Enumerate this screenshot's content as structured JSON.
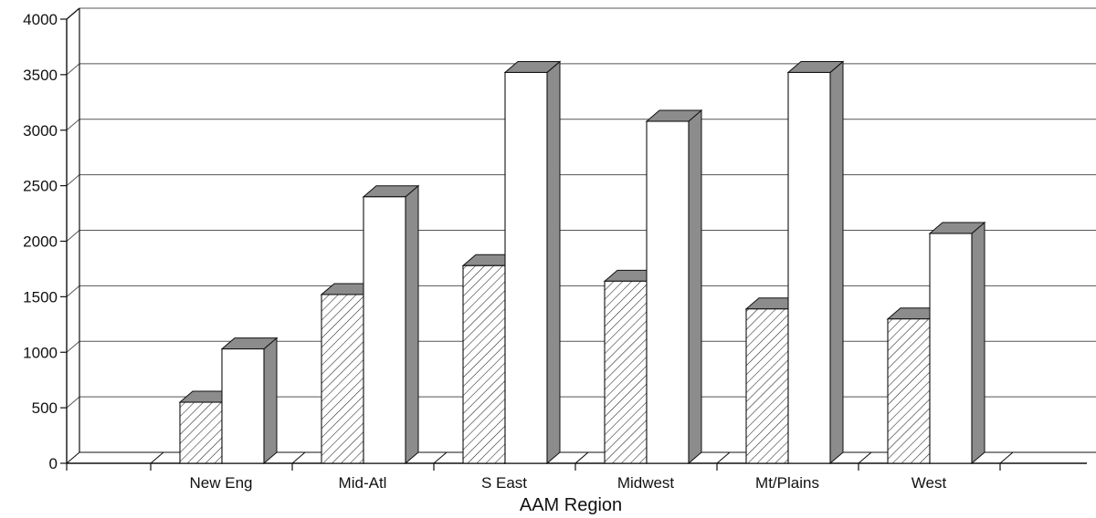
{
  "chart_data": {
    "type": "bar",
    "style": "3d-grouped",
    "categories": [
      "New Eng",
      "Mid-Atl",
      "S East",
      "Midwest",
      "Mt/Plains",
      "West"
    ],
    "series": [
      {
        "fill": "hatched",
        "values": [
          550,
          1520,
          1780,
          1640,
          1390,
          1300
        ]
      },
      {
        "fill": "white",
        "values": [
          1030,
          2400,
          3520,
          3080,
          3520,
          2070
        ]
      }
    ],
    "xlabel": "AAM Region",
    "ylabel": "",
    "ylim": [
      0,
      4000
    ],
    "yticks": [
      "0",
      "500",
      "1000",
      "1500",
      "2000",
      "2500",
      "3000",
      "3500",
      "4000"
    ],
    "grid": true,
    "colors": {
      "bar_side": "#8c8c8c",
      "bar_top": "#8c8c8c",
      "gridline": "#555555",
      "ink": "#111111"
    }
  }
}
